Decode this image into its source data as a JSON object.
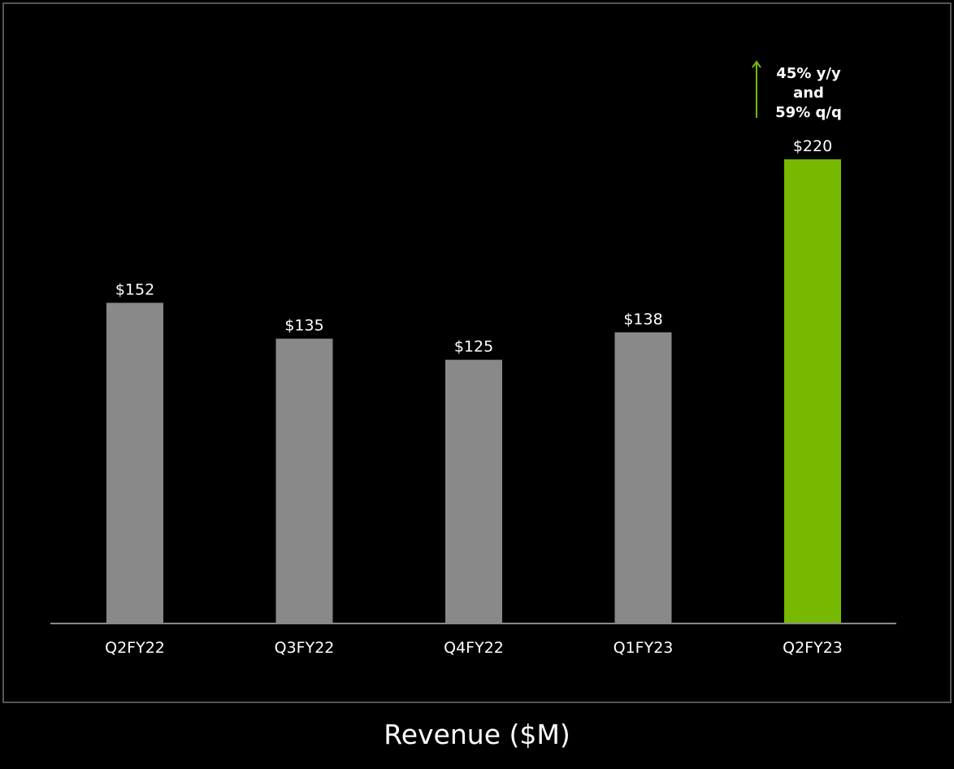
{
  "chart_data": {
    "type": "bar",
    "categories": [
      "Q2FY22",
      "Q3FY22",
      "Q4FY22",
      "Q1FY23",
      "Q2FY23"
    ],
    "values": [
      152,
      135,
      125,
      138,
      220
    ],
    "data_labels": [
      "$152",
      "$135",
      "$125",
      "$138",
      "$220"
    ],
    "xlabel": "Revenue ($M)",
    "ylabel": "",
    "ylim": [
      0,
      220
    ],
    "grid": false,
    "legend": "none",
    "colors": {
      "default_bar": "#898989",
      "highlight_bar": "#76b900",
      "highlight_index": 4,
      "axis": "#888888",
      "text": "#ffffff",
      "background": "#000000"
    },
    "annotation": {
      "lines": [
        "45% y/y",
        "and",
        "59% q/q"
      ],
      "arrow": "up-arrow-icon",
      "arrow_color": "#76b900"
    }
  }
}
